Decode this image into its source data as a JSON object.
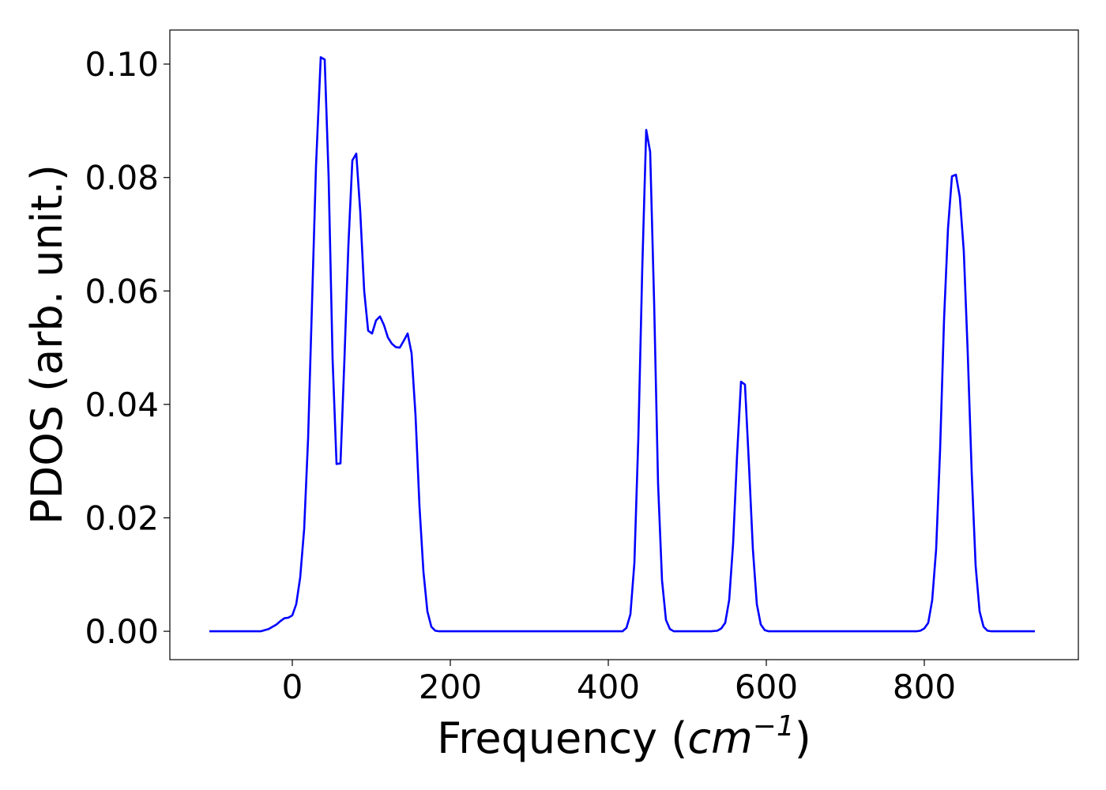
{
  "chart_data": {
    "type": "line",
    "title": "",
    "xlabel_text": "Frequency (",
    "xlabel_math": "cm",
    "xlabel_sup": "−1",
    "xlabel_close": ")",
    "ylabel": "PDOS (arb. unit.)",
    "xlim": [
      -155,
      995
    ],
    "ylim": [
      -0.005,
      0.106
    ],
    "xticks": [
      0,
      200,
      400,
      600,
      800
    ],
    "xtick_labels": [
      "0",
      "200",
      "400",
      "600",
      "800"
    ],
    "yticks": [
      0.0,
      0.02,
      0.04,
      0.06,
      0.08,
      0.1
    ],
    "ytick_labels": [
      "0.00",
      "0.02",
      "0.04",
      "0.06",
      "0.08",
      "0.10"
    ],
    "grid": false,
    "legend": "none",
    "colors": {
      "line": "#0000ff",
      "axes": "#000000",
      "background": "#ffffff"
    },
    "series": [
      {
        "x": [
          -105,
          -60,
          -40,
          -30,
          -20,
          -15,
          -10,
          -5,
          0,
          5,
          10,
          15,
          20,
          25,
          30,
          36,
          41,
          46,
          51,
          56,
          61,
          66,
          71,
          76,
          81,
          86,
          91,
          96,
          101,
          106,
          111,
          116,
          121,
          126,
          131,
          136,
          141,
          146,
          151,
          156,
          161,
          166,
          171,
          176,
          181,
          186,
          191,
          200,
          300,
          400,
          418,
          423,
          428,
          433,
          438,
          443,
          448,
          453,
          458,
          463,
          468,
          473,
          478,
          483,
          488,
          500,
          530,
          538,
          543,
          548,
          553,
          558,
          563,
          568,
          573,
          578,
          583,
          588,
          593,
          598,
          603,
          610,
          700,
          790,
          795,
          800,
          805,
          810,
          815,
          820,
          825,
          830,
          835,
          840,
          845,
          850,
          855,
          860,
          865,
          870,
          875,
          880,
          885,
          890,
          900,
          940
        ],
        "y": [
          0.0,
          0.0,
          0.0,
          0.0004,
          0.0012,
          0.0018,
          0.0023,
          0.0024,
          0.0028,
          0.0048,
          0.0095,
          0.018,
          0.034,
          0.058,
          0.082,
          0.1012,
          0.1008,
          0.08,
          0.048,
          0.0295,
          0.0296,
          0.048,
          0.068,
          0.083,
          0.0842,
          0.074,
          0.06,
          0.053,
          0.0525,
          0.0548,
          0.0555,
          0.054,
          0.0518,
          0.0507,
          0.0501,
          0.05,
          0.0512,
          0.0525,
          0.049,
          0.038,
          0.022,
          0.0105,
          0.0035,
          0.0008,
          0.0001,
          0.0,
          0.0,
          0.0,
          0.0,
          0.0,
          0.0,
          0.0006,
          0.003,
          0.012,
          0.034,
          0.064,
          0.0884,
          0.0845,
          0.058,
          0.026,
          0.009,
          0.002,
          0.0004,
          0.0,
          0.0,
          0.0,
          0.0,
          0.0001,
          0.0005,
          0.0015,
          0.0055,
          0.0155,
          0.031,
          0.044,
          0.0435,
          0.0295,
          0.0145,
          0.0048,
          0.0012,
          0.0002,
          0.0,
          0.0,
          0.0,
          0.0,
          0.0001,
          0.0005,
          0.0015,
          0.0055,
          0.0145,
          0.032,
          0.055,
          0.071,
          0.0802,
          0.0805,
          0.0765,
          0.067,
          0.049,
          0.028,
          0.0115,
          0.0035,
          0.0008,
          0.0001,
          0.0,
          0.0,
          0.0,
          0.0
        ]
      }
    ]
  }
}
